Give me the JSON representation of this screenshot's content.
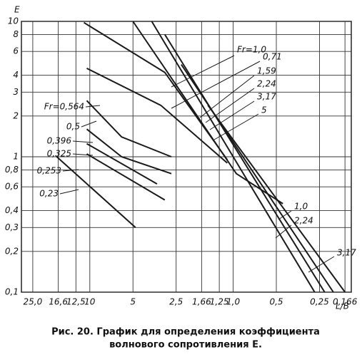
{
  "chart_data": {
    "type": "line",
    "y_label": "E",
    "x_label": "L/B",
    "caption": [
      "Рис. 20.  График  для  определения  коэффициента",
      "волнового сопротивления Е."
    ],
    "color": "#1a1a1a",
    "grid": true,
    "xscale": "log",
    "yscale": "log",
    "xlim": [
      30,
      0.15
    ],
    "ylim": [
      0.1,
      10
    ],
    "xticks": [
      {
        "value": 25,
        "label": "25,0"
      },
      {
        "value": 16.6,
        "label": "16,6"
      },
      {
        "value": 12.5,
        "label": "12,5"
      },
      10,
      5,
      {
        "value": 2.5,
        "label": "2,5"
      },
      {
        "value": 1.66,
        "label": "1,66"
      },
      {
        "value": 1.25,
        "label": "1,25"
      },
      {
        "value": 1.0,
        "label": "1,0"
      },
      {
        "value": 0.5,
        "label": "0,5"
      },
      {
        "value": 0.25,
        "label": "0,25"
      },
      {
        "value": 0.166,
        "label": "0,166"
      }
    ],
    "yticks": [
      10,
      8,
      6,
      4,
      3,
      2,
      1,
      {
        "value": 0.8,
        "label": "0,8"
      },
      {
        "value": 0.6,
        "label": "0,6"
      },
      {
        "value": 0.4,
        "label": "0,4"
      },
      {
        "value": 0.3,
        "label": "0,3"
      },
      {
        "value": 0.2,
        "label": "0,2"
      },
      {
        "value": 0.1,
        "label": "0,1"
      }
    ],
    "series": [
      {
        "name": "Fr=1,0",
        "x": [
          5,
          0.95,
          0.45
        ],
        "values": [
          10,
          0.75,
          0.45
        ]
      },
      {
        "name": "0,71",
        "x": [
          11,
          3,
          1.1
        ],
        "values": [
          9.8,
          4.2,
          0.95
        ]
      },
      {
        "name": "1,59",
        "x": [
          3.7,
          0.27
        ],
        "values": [
          10,
          0.1
        ]
      },
      {
        "name": "2,24",
        "x": [
          3.0,
          0.23
        ],
        "values": [
          8,
          0.1
        ]
      },
      {
        "name": "3,17",
        "x": [
          2.3,
          0.2
        ],
        "values": [
          4.8,
          0.1
        ]
      },
      {
        "name": "5",
        "x": [
          1.5,
          0.166
        ],
        "values": [
          2.4,
          0.1
        ]
      },
      {
        "name": "Fr=0,564",
        "x": [
          10.5,
          3.2,
          1.1
        ],
        "values": [
          4.5,
          2.4,
          0.9
        ]
      },
      {
        "name": "0,5",
        "x": [
          10.5,
          6,
          2.7
        ],
        "values": [
          2.6,
          1.4,
          1.0
        ]
      },
      {
        "name": "0,396",
        "x": [
          10.5,
          6,
          2.7
        ],
        "values": [
          1.6,
          1.0,
          0.75
        ]
      },
      {
        "name": "0,325",
        "x": [
          10.5,
          3.4
        ],
        "values": [
          1.25,
          0.63
        ]
      },
      {
        "name": "0,253",
        "x": [
          10.5,
          3.0
        ],
        "values": [
          1.05,
          0.48
        ]
      },
      {
        "name": "0,23",
        "x": [
          17,
          4.8
        ],
        "values": [
          1.0,
          0.3
        ]
      }
    ],
    "annotations": [
      "1,0",
      "2,24",
      "3,17"
    ]
  }
}
